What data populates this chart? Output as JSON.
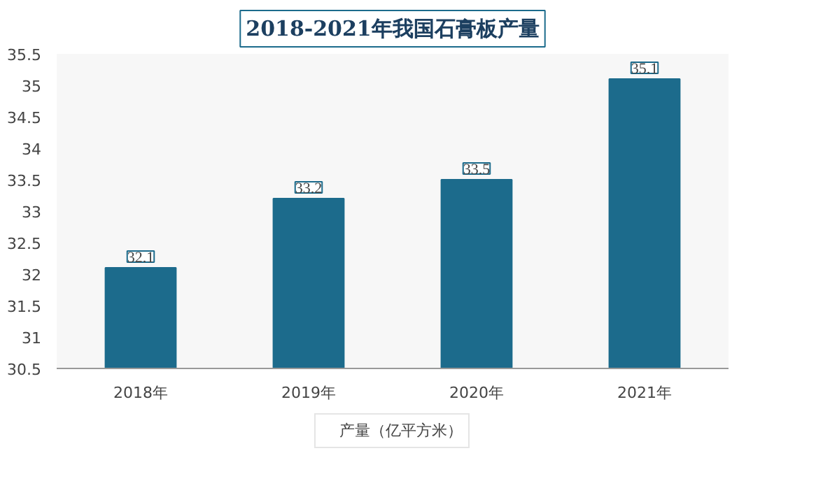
{
  "chart_data": {
    "type": "bar",
    "title": "2018-2021年我国石膏板产量",
    "categories": [
      "2018年",
      "2019年",
      "2020年",
      "2021年"
    ],
    "series": [
      {
        "name": "产量（亿平方米）",
        "color": "#1c6b8c",
        "values": [
          32.1,
          33.2,
          33.5,
          35.1
        ]
      }
    ],
    "ylim": [
      30.5,
      35.5
    ],
    "yticks": [
      30.5,
      31,
      31.5,
      32,
      32.5,
      33,
      33.5,
      34,
      34.5,
      35,
      35.5
    ],
    "data_labels": true,
    "legend": "bottom",
    "grid": false
  }
}
